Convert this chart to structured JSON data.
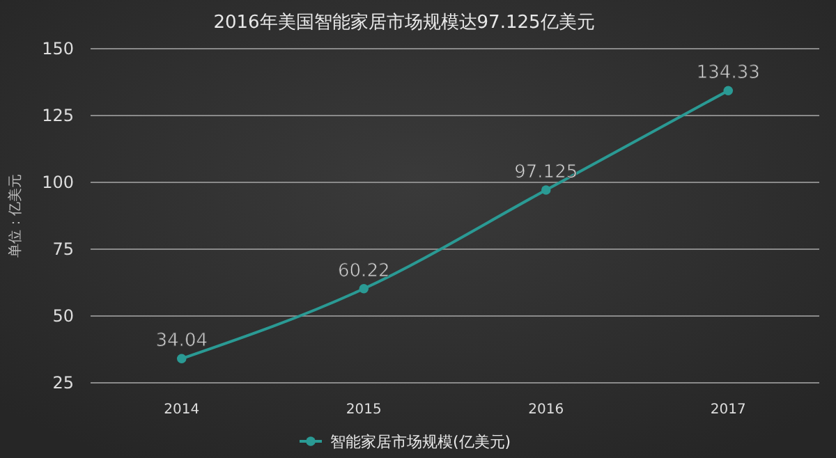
{
  "chart_data": {
    "type": "line",
    "title": "2016年美国智能家居市场规模达97.125亿美元",
    "ylabel": "单位：亿美元",
    "categories": [
      "2014",
      "2015",
      "2016",
      "2017"
    ],
    "series": [
      {
        "name": "智能家居市场规模(亿美元)",
        "color": "#2a9a94",
        "values": [
          34.04,
          60.22,
          97.125,
          134.33
        ]
      }
    ],
    "ylim": [
      25,
      150
    ],
    "yticks": [
      25,
      50,
      75,
      100,
      125,
      150
    ],
    "grid": "y",
    "legend": "bottom",
    "marker": "circle",
    "line_style": "solid",
    "data_labels": true
  }
}
